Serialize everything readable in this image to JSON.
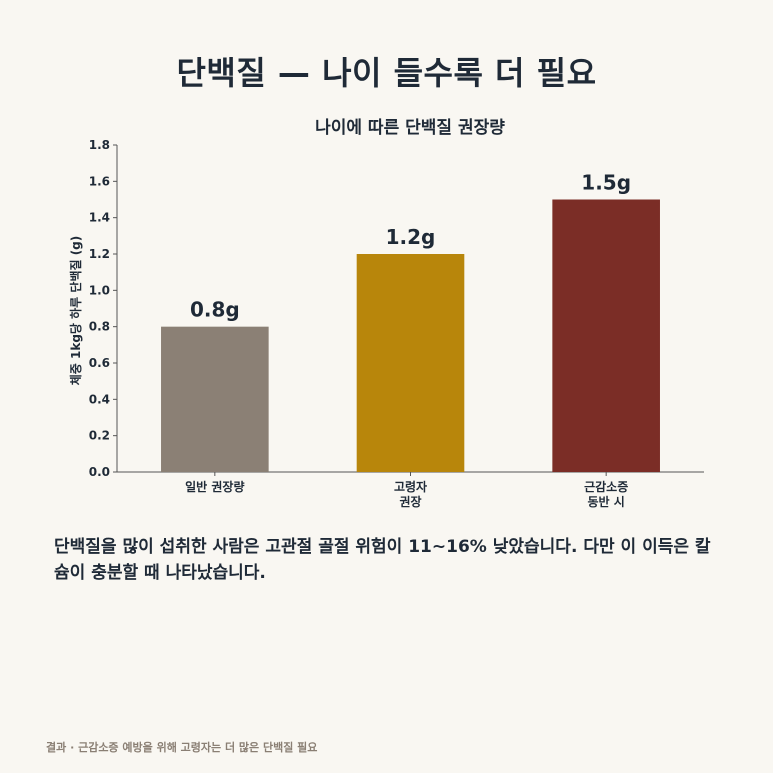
{
  "header": {
    "title": "단백질 — 나이 들수록 더 필요"
  },
  "chart_data": {
    "type": "bar",
    "title": "나이에 따른 단백질 권장량",
    "ylabel": "체중 1kg당 하루 단백질 (g)",
    "xlabel": "",
    "categories": [
      [
        "일반 권장량"
      ],
      [
        "고령자",
        "권장"
      ],
      [
        "근감소증",
        "동반 시"
      ]
    ],
    "values": [
      0.8,
      1.2,
      1.5
    ],
    "data_labels": [
      "0.8g",
      "1.2g",
      "1.5g"
    ],
    "colors": [
      "#8b8075",
      "#b8860b",
      "#7b2d26"
    ],
    "ylim": [
      0,
      1.8
    ],
    "yticks": [
      "0.0",
      "0.2",
      "0.4",
      "0.6",
      "0.8",
      "1.0",
      "1.2",
      "1.4",
      "1.6",
      "1.8"
    ],
    "grid": false,
    "legend": "none"
  },
  "caption": "단백질을 많이 섭취한 사람은 고관절 골절 위험이 11~16% 낮았습니다. 다만 이 이득은 칼슘이 충분할 때 나타났습니다.",
  "footer": "결과 · 근감소증 예방을 위해 고령자는 더 많은 단백질 필요"
}
